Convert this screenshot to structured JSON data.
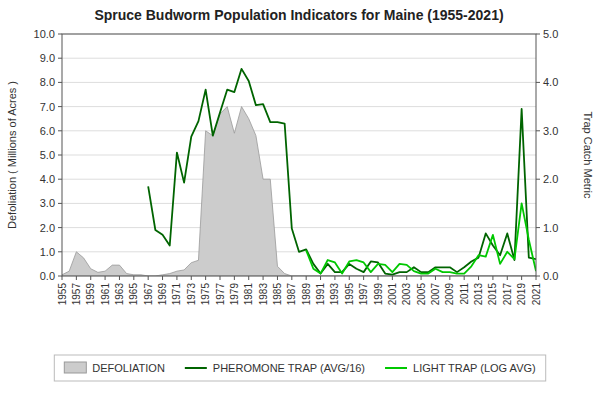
{
  "chart_data": {
    "type": "line",
    "title": "Spruce Budworm Population Indicators for Maine (1955-2021)",
    "ylabel": "Defoliation ( Millions of Acres )",
    "y2label": "Trap Catch Metric",
    "x": [
      1955,
      1956,
      1957,
      1958,
      1959,
      1960,
      1961,
      1962,
      1963,
      1964,
      1965,
      1966,
      1967,
      1968,
      1969,
      1970,
      1971,
      1972,
      1973,
      1974,
      1975,
      1976,
      1977,
      1978,
      1979,
      1980,
      1981,
      1982,
      1983,
      1984,
      1985,
      1986,
      1987,
      1988,
      1989,
      1990,
      1991,
      1992,
      1993,
      1994,
      1995,
      1996,
      1997,
      1998,
      1999,
      2000,
      2001,
      2002,
      2003,
      2004,
      2005,
      2006,
      2007,
      2008,
      2009,
      2010,
      2011,
      2012,
      2013,
      2014,
      2015,
      2016,
      2017,
      2018,
      2019,
      2020,
      2021
    ],
    "xlim": [
      1955,
      2021
    ],
    "xticks": [
      1955,
      1957,
      1959,
      1961,
      1963,
      1965,
      1967,
      1969,
      1971,
      1973,
      1975,
      1977,
      1979,
      1981,
      1983,
      1985,
      1987,
      1989,
      1991,
      1993,
      1995,
      1997,
      1999,
      2001,
      2003,
      2005,
      2007,
      2009,
      2011,
      2013,
      2015,
      2017,
      2019,
      2021
    ],
    "ylim": [
      0,
      10.0
    ],
    "yticks": [
      {
        "value": 0.0,
        "label": "0.0"
      },
      {
        "value": 1.0,
        "label": "1.0"
      },
      {
        "value": 2.0,
        "label": "2.0"
      },
      {
        "value": 3.0,
        "label": "3.0"
      },
      {
        "value": 4.0,
        "label": "4.0"
      },
      {
        "value": 5.0,
        "label": "5.0"
      },
      {
        "value": 6.0,
        "label": "6.0"
      },
      {
        "value": 7.0,
        "label": "7.0"
      },
      {
        "value": 8.0,
        "label": "8.0"
      },
      {
        "value": 9.0,
        "label": "9.0"
      },
      {
        "value": 10.0,
        "label": "10.0"
      }
    ],
    "y2lim": [
      0,
      5.0
    ],
    "y2ticks": [
      {
        "value": 0.0,
        "label": "0.0"
      },
      {
        "value": 1.0,
        "label": "1.0"
      },
      {
        "value": 2.0,
        "label": "2.0"
      },
      {
        "value": 3.0,
        "label": "3.0"
      },
      {
        "value": 4.0,
        "label": "4.0"
      },
      {
        "value": 5.0,
        "label": "5.0"
      }
    ],
    "grid": true,
    "legend": "bottom",
    "series": [
      {
        "name": "DEFOLIATION",
        "type": "area",
        "color": "#cccccc",
        "values": [
          0.05,
          0.2,
          1.0,
          0.75,
          0.3,
          0.15,
          0.2,
          0.45,
          0.45,
          0.1,
          0.05,
          0.05,
          0.0,
          0.0,
          0.05,
          0.1,
          0.2,
          0.25,
          0.55,
          0.65,
          6.0,
          5.8,
          6.7,
          7.0,
          5.9,
          7.0,
          6.5,
          5.8,
          4.0,
          4.0,
          0.4,
          0.1,
          0.0,
          0.0,
          0.0,
          0.0,
          0.0,
          0.0,
          0.0,
          0.0,
          0.0,
          0.0,
          0.0,
          0.0,
          0.0,
          0.0,
          0.0,
          0.0,
          0.0,
          0.0,
          0.0,
          0.0,
          0.0,
          0.0,
          0.0,
          0.0,
          0.0,
          0.0,
          0.0,
          0.0,
          0.0,
          0.0,
          0.0,
          0.0,
          0.0,
          0.0,
          0.0
        ]
      },
      {
        "name": "PHEROMONE TRAP (AVG/16)",
        "type": "line",
        "axis": "y2",
        "color": "#006400",
        "values": [
          null,
          null,
          null,
          null,
          null,
          null,
          null,
          null,
          null,
          null,
          null,
          null,
          1.85,
          0.95,
          0.85,
          0.63,
          2.55,
          1.93,
          2.88,
          3.2,
          3.85,
          2.9,
          3.38,
          3.85,
          3.8,
          4.28,
          4.03,
          3.53,
          3.55,
          3.18,
          3.18,
          3.15,
          0.98,
          0.5,
          0.55,
          0.25,
          0.05,
          0.25,
          0.08,
          0.08,
          0.25,
          0.15,
          0.08,
          0.3,
          0.28,
          0.05,
          0.03,
          0.08,
          0.08,
          0.18,
          0.08,
          0.08,
          0.18,
          0.18,
          0.18,
          0.08,
          0.18,
          0.3,
          0.38,
          0.88,
          0.63,
          0.43,
          0.88,
          0.33,
          3.45,
          0.38,
          0.35
        ]
      },
      {
        "name": "LIGHT TRAP (LOG AVG)",
        "type": "line",
        "axis": "y2",
        "color": "#00c800",
        "values": [
          null,
          null,
          null,
          null,
          null,
          null,
          null,
          null,
          null,
          null,
          null,
          null,
          null,
          null,
          null,
          null,
          null,
          null,
          null,
          null,
          null,
          null,
          null,
          null,
          null,
          null,
          null,
          null,
          null,
          null,
          null,
          null,
          null,
          null,
          0.53,
          0.15,
          0.05,
          0.33,
          0.28,
          0.05,
          0.3,
          0.33,
          0.28,
          0.08,
          0.25,
          0.23,
          0.08,
          0.25,
          0.23,
          0.1,
          0.05,
          0.05,
          0.15,
          0.08,
          0.08,
          0.05,
          0.05,
          0.2,
          0.43,
          0.4,
          0.85,
          0.25,
          0.5,
          0.35,
          1.5,
          0.75,
          0.1
        ]
      }
    ]
  }
}
